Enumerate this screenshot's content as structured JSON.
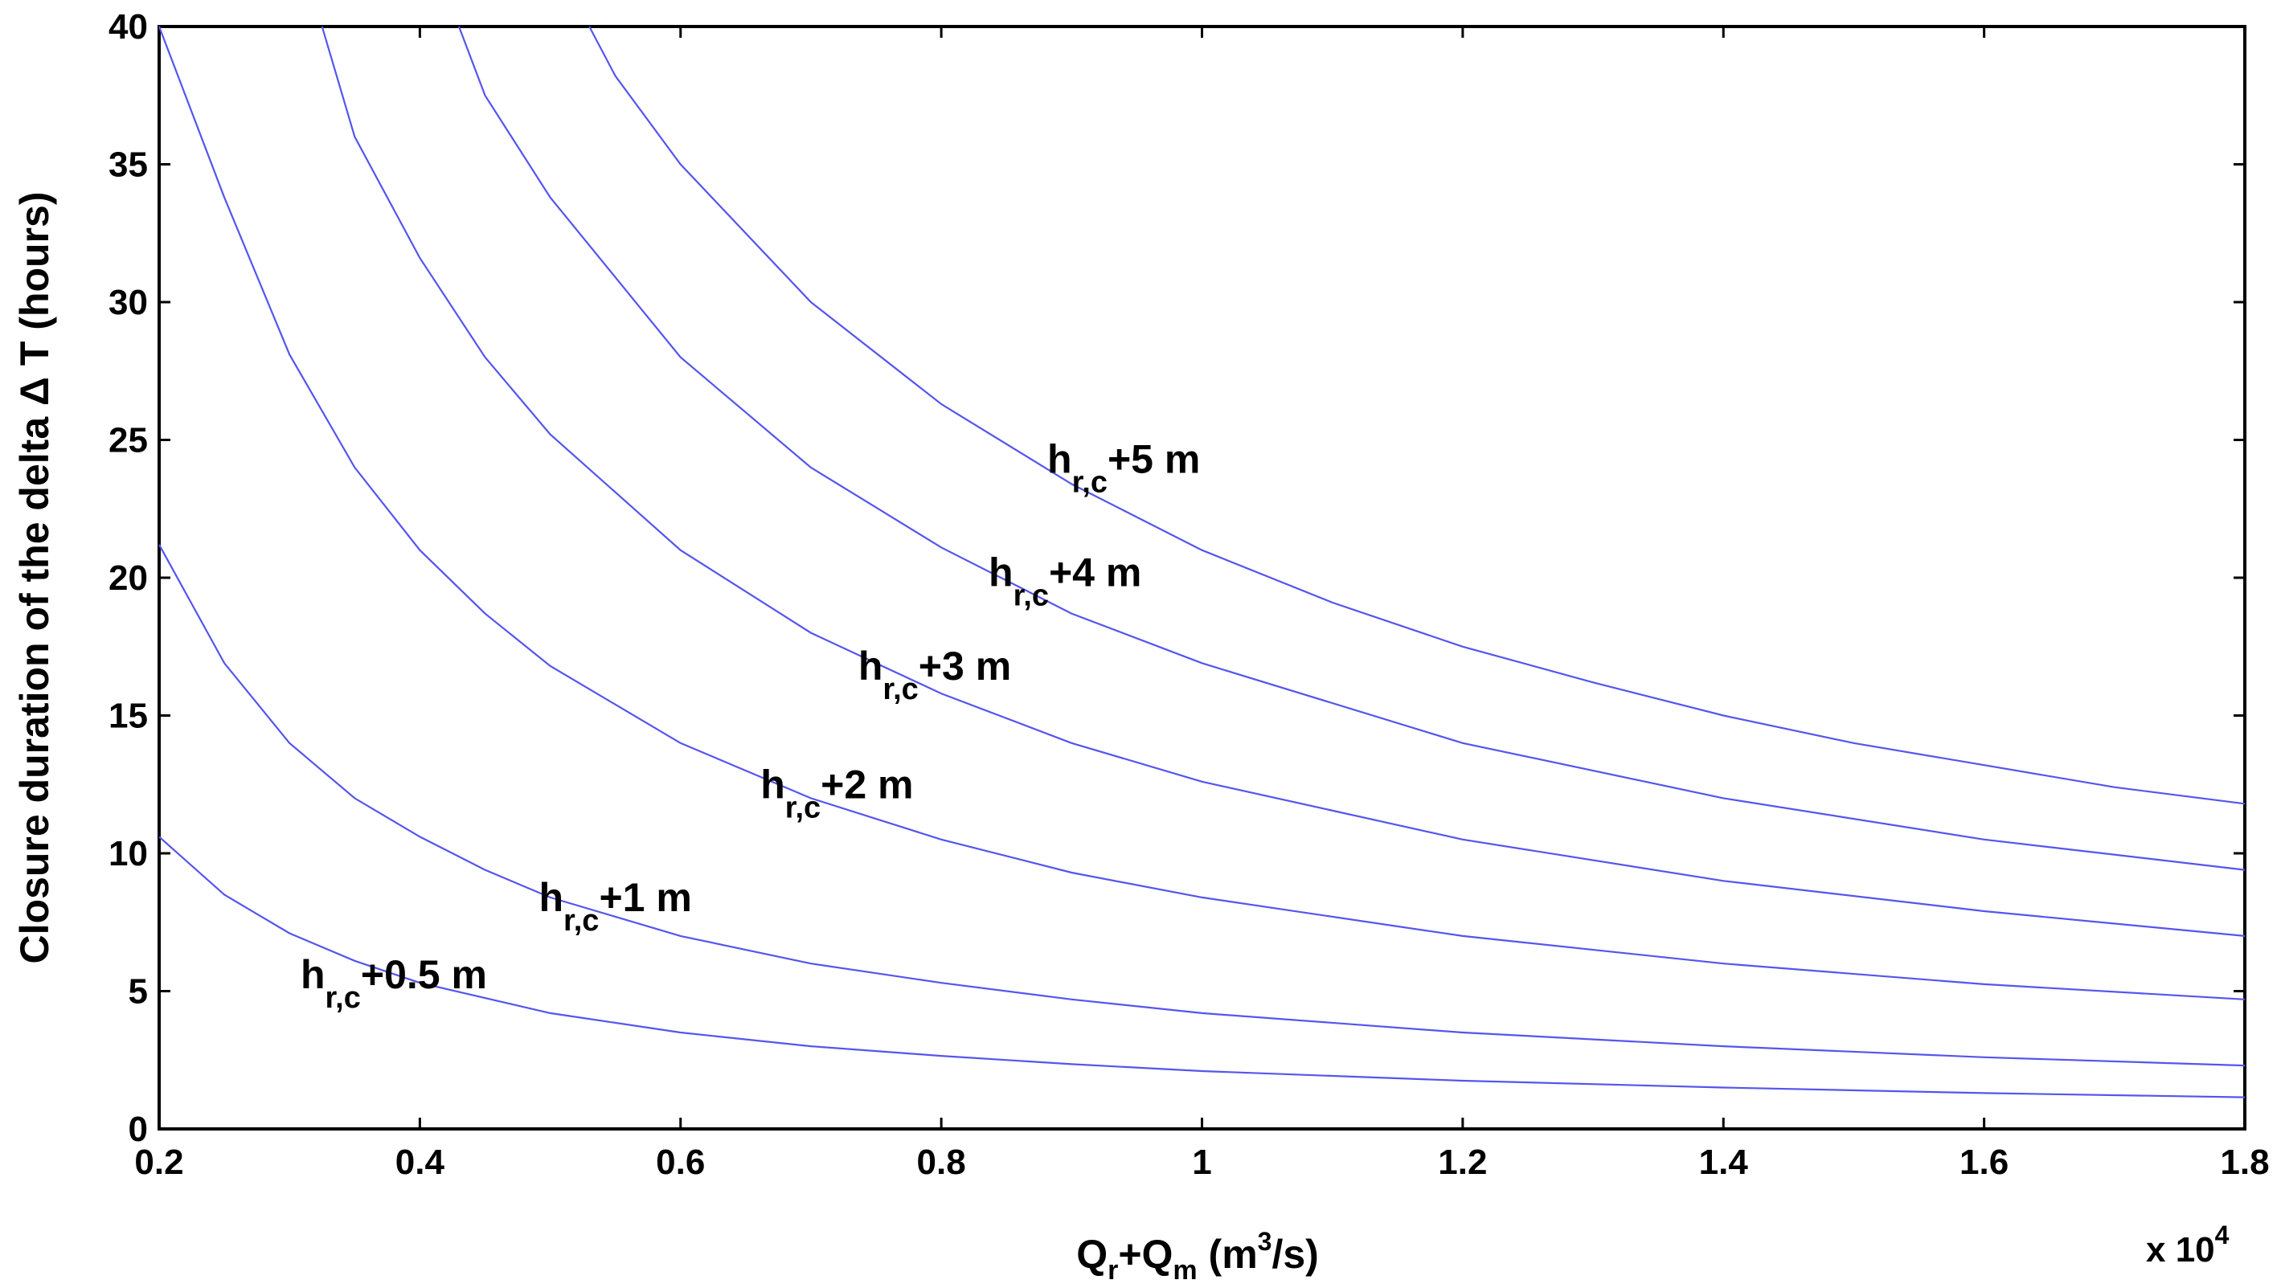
{
  "chart_data": {
    "type": "line",
    "title": "",
    "xlabel": {
      "main": "Q",
      "sub1": "r",
      "plus": "+Q",
      "sub2": "m",
      "unit_open": " (m",
      "sup": "3",
      "unit_close": "/s)"
    },
    "ylabel": "Closure duration of the delta  Δ T  (hours)",
    "x_multiplier": {
      "prefix": "x 10",
      "exponent": "4"
    },
    "xlim": [
      0.2,
      1.8
    ],
    "ylim": [
      0,
      40
    ],
    "xticks": [
      0.2,
      0.4,
      0.6,
      0.8,
      1,
      1.2,
      1.4,
      1.6,
      1.8
    ],
    "yticks": [
      0,
      5,
      10,
      15,
      20,
      25,
      30,
      35,
      40
    ],
    "grid": false,
    "line_color": "#5555ee",
    "series": [
      {
        "name": "+0.5 m",
        "label_at": [
          0.38,
          5.1
        ],
        "x": [
          0.2,
          0.25,
          0.3,
          0.35,
          0.4,
          0.5,
          0.6,
          0.7,
          0.8,
          0.9,
          1.0,
          1.2,
          1.4,
          1.6,
          1.8
        ],
        "y": [
          10.6,
          8.5,
          7.1,
          6.1,
          5.3,
          4.2,
          3.5,
          3.0,
          2.65,
          2.35,
          2.1,
          1.75,
          1.5,
          1.3,
          1.15
        ]
      },
      {
        "name": "+1 m",
        "label_at": [
          0.55,
          7.9
        ],
        "x": [
          0.2,
          0.25,
          0.3,
          0.35,
          0.4,
          0.45,
          0.5,
          0.6,
          0.7,
          0.8,
          0.9,
          1.0,
          1.2,
          1.4,
          1.6,
          1.8
        ],
        "y": [
          21.2,
          16.9,
          14.0,
          12.0,
          10.6,
          9.4,
          8.4,
          7.0,
          6.0,
          5.3,
          4.7,
          4.2,
          3.5,
          3.0,
          2.6,
          2.3
        ]
      },
      {
        "name": "+2 m",
        "label_at": [
          0.72,
          12.0
        ],
        "x": [
          0.2,
          0.25,
          0.3,
          0.35,
          0.4,
          0.45,
          0.5,
          0.6,
          0.7,
          0.8,
          0.9,
          1.0,
          1.2,
          1.4,
          1.6,
          1.8
        ],
        "y": [
          40.0,
          33.8,
          28.1,
          24.0,
          21.0,
          18.7,
          16.8,
          14.0,
          12.0,
          10.5,
          9.3,
          8.4,
          7.0,
          6.0,
          5.25,
          4.7
        ]
      },
      {
        "name": "+3 m",
        "label_at": [
          0.795,
          16.3
        ],
        "x": [
          0.325,
          0.35,
          0.4,
          0.45,
          0.5,
          0.6,
          0.7,
          0.8,
          0.9,
          1.0,
          1.2,
          1.4,
          1.6,
          1.8
        ],
        "y": [
          40.0,
          36.0,
          31.6,
          28.0,
          25.2,
          21.0,
          18.0,
          15.8,
          14.0,
          12.6,
          10.5,
          9.0,
          7.9,
          7.0
        ]
      },
      {
        "name": "+4 m",
        "label_at": [
          0.895,
          19.7
        ],
        "x": [
          0.43,
          0.45,
          0.5,
          0.6,
          0.7,
          0.8,
          0.9,
          1.0,
          1.2,
          1.4,
          1.6,
          1.8
        ],
        "y": [
          40.0,
          37.5,
          33.8,
          28.0,
          24.0,
          21.1,
          18.7,
          16.9,
          14.0,
          12.0,
          10.5,
          9.4
        ]
      },
      {
        "name": "+5 m",
        "label_at": [
          0.94,
          23.8
        ],
        "x": [
          0.53,
          0.55,
          0.6,
          0.7,
          0.8,
          0.9,
          1.0,
          1.1,
          1.2,
          1.3,
          1.4,
          1.5,
          1.6,
          1.7,
          1.8
        ],
        "y": [
          40.0,
          38.2,
          35.0,
          30.0,
          26.3,
          23.4,
          21.0,
          19.1,
          17.5,
          16.2,
          15.0,
          14.0,
          13.2,
          12.4,
          11.8
        ]
      }
    ],
    "curve_label_prefix": {
      "main": "h",
      "sub": "r,c"
    }
  }
}
